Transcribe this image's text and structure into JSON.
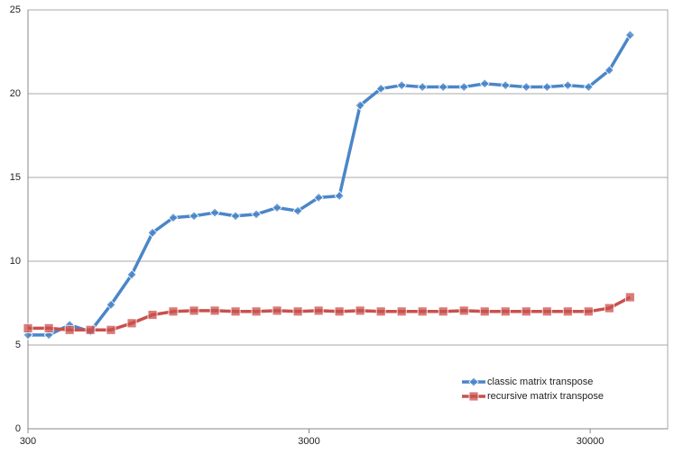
{
  "chart_data": {
    "type": "line",
    "xscale": "log",
    "grid": true,
    "legend": "lower right",
    "x": [
      300,
      356,
      422,
      500,
      592,
      702,
      832,
      986,
      1169,
      1386,
      1643,
      1947,
      2308,
      2736,
      3244,
      3845,
      4558,
      5403,
      6405,
      7592,
      9000,
      10668,
      12646,
      14991,
      17770,
      21064,
      24970,
      29599,
      35087,
      41592
    ],
    "series": [
      {
        "name": "classic matrix transpose",
        "color": "#4a86c8",
        "marker": "diamond",
        "values": [
          5.6,
          5.6,
          6.2,
          5.8,
          7.4,
          9.2,
          11.7,
          12.6,
          12.7,
          12.9,
          12.7,
          12.8,
          13.2,
          13.0,
          13.8,
          13.9,
          19.3,
          20.3,
          20.5,
          20.4,
          20.4,
          20.4,
          20.6,
          20.5,
          20.4,
          20.4,
          20.5,
          20.4,
          21.4,
          23.5
        ]
      },
      {
        "name": "recursive matrix transpose",
        "color": "#c9504c",
        "marker": "square",
        "values": [
          6.0,
          6.0,
          5.9,
          5.9,
          5.9,
          6.3,
          6.8,
          7.0,
          7.05,
          7.05,
          7.0,
          7.0,
          7.05,
          7.0,
          7.05,
          7.0,
          7.05,
          7.0,
          7.0,
          7.0,
          7.0,
          7.05,
          7.0,
          7.0,
          7.0,
          7.0,
          7.0,
          7.0,
          7.2,
          7.85
        ]
      }
    ],
    "xlim": [
      300,
      56600
    ],
    "xticks": [
      300,
      3000,
      30000
    ],
    "ylim": [
      0,
      25
    ],
    "yticks": [
      0,
      5,
      10,
      15,
      20,
      25
    ]
  }
}
